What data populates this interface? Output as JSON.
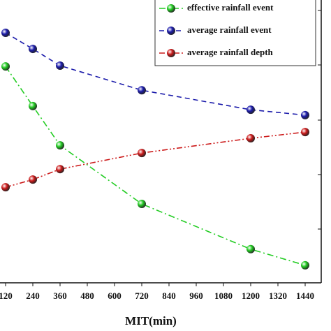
{
  "chart_data": {
    "type": "line",
    "x_label": "MIT(min)",
    "x": [
      120,
      240,
      360,
      720,
      1200,
      1440
    ],
    "xlim": [
      0,
      1500
    ],
    "xticks": [
      120,
      240,
      360,
      480,
      600,
      720,
      840,
      960,
      1080,
      1200,
      1320,
      1440
    ],
    "ylim": [
      0,
      100
    ],
    "series": [
      {
        "name": "effective rainfall event",
        "color": "#22cc22",
        "dash": "9 4 2 4",
        "values": [
          76.5,
          62.5,
          48.6,
          27.9,
          11.9,
          6.2
        ]
      },
      {
        "name": "average rainfall event",
        "color": "#1a1aaa",
        "dash": "7 5",
        "values": [
          88.4,
          82.7,
          76.8,
          68.1,
          61.2,
          59.3
        ]
      },
      {
        "name": "average rainfall depth",
        "color": "#cc1a1a",
        "dash": "8 3 2 3 2 3",
        "values": [
          33.8,
          36.5,
          40.2,
          45.9,
          51.1,
          53.3
        ]
      }
    ],
    "legend": "upper right"
  }
}
